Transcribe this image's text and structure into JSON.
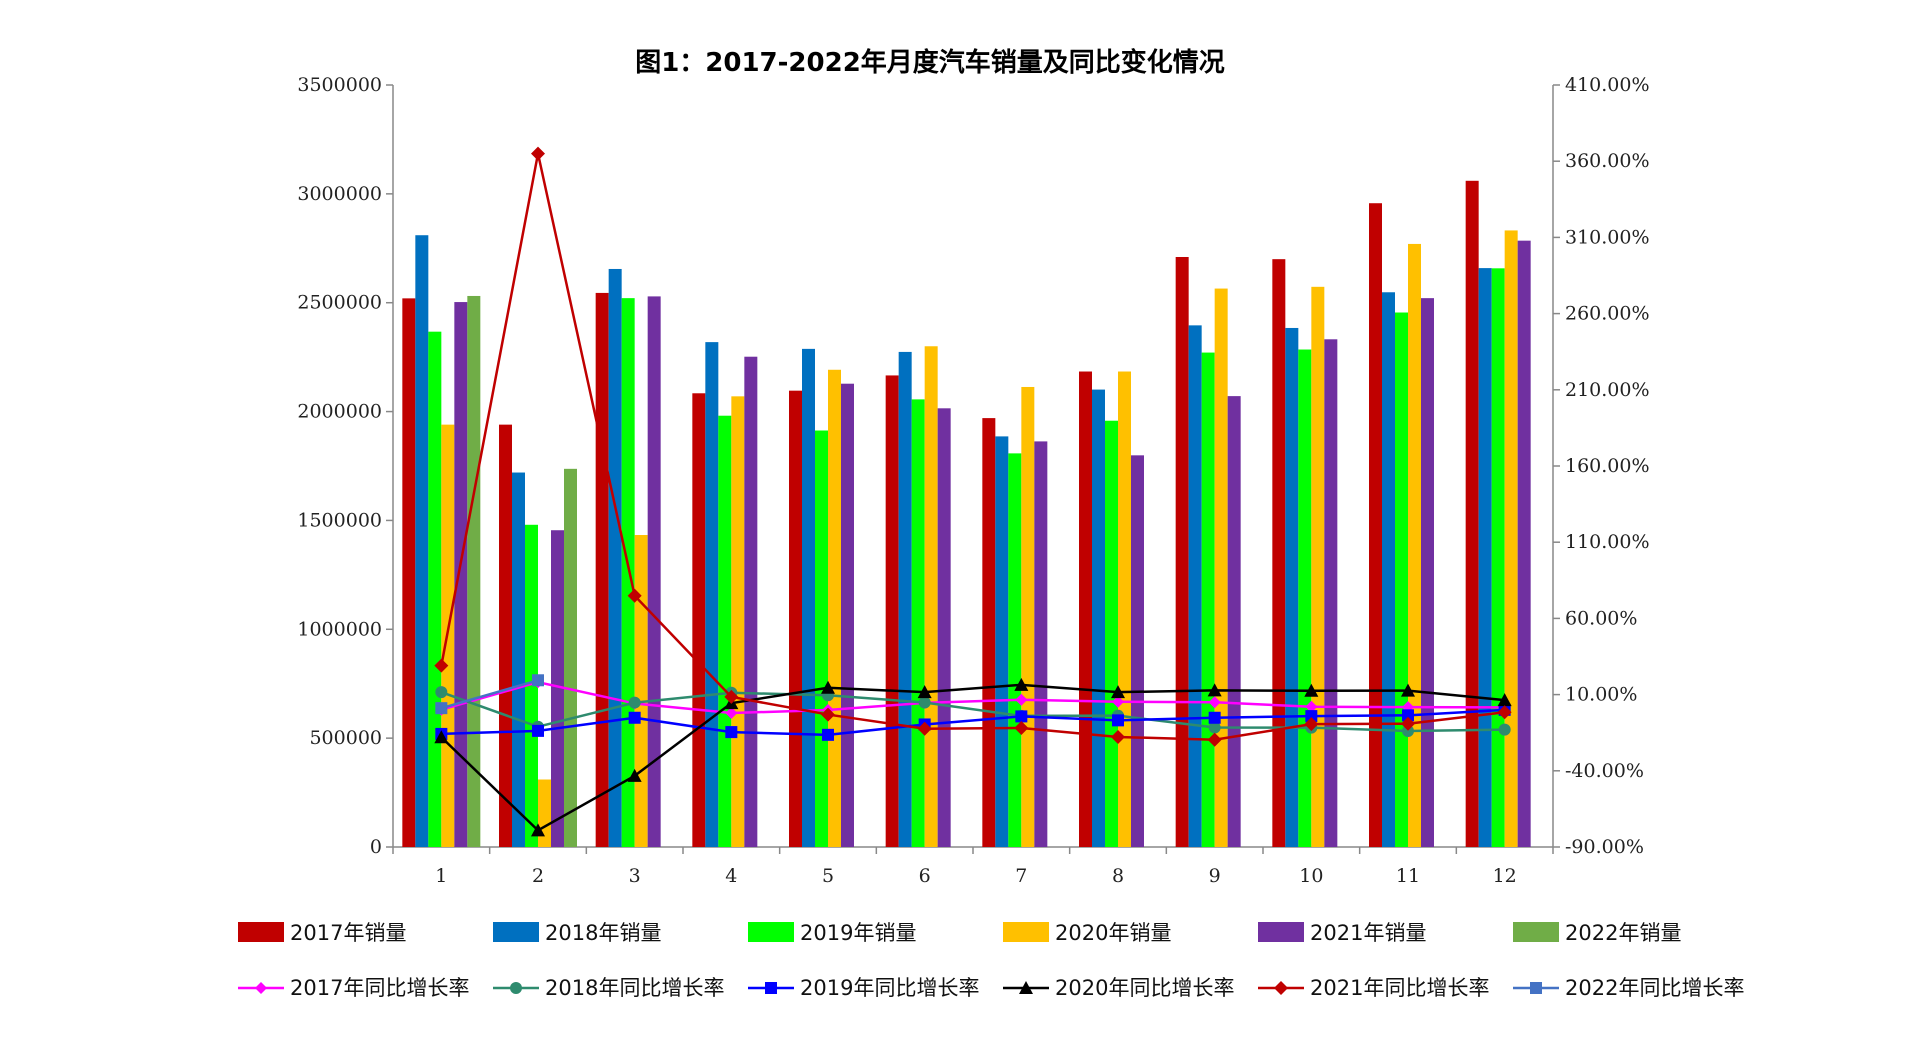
{
  "chart_data": {
    "type": "bar",
    "title": "图1：2017-2022年月度汽车销量及同比变化情况",
    "categories": [
      "1",
      "2",
      "3",
      "4",
      "5",
      "6",
      "7",
      "8",
      "9",
      "10",
      "11",
      "12"
    ],
    "ylim": [
      0,
      3500000
    ],
    "yticks": [
      "0",
      "500000",
      "1000000",
      "1500000",
      "2000000",
      "2500000",
      "3000000",
      "3500000"
    ],
    "y2lim": [
      -90,
      410
    ],
    "y2ticks": [
      "-90.00%",
      "-40.00%",
      "10.00%",
      "60.00%",
      "110.00%",
      "160.00%",
      "210.00%",
      "260.00%",
      "310.00%",
      "360.00%",
      "410.00%"
    ],
    "bar_series": [
      {
        "name": "2017年销量",
        "color": "#c00000",
        "values": [
          2520000,
          1940000,
          2545000,
          2084000,
          2096000,
          2166000,
          1970000,
          2184000,
          2710000,
          2700000,
          2957000,
          3060000
        ]
      },
      {
        "name": "2018年销量",
        "color": "#0070c0",
        "values": [
          2810000,
          1720000,
          2655000,
          2319000,
          2288000,
          2274000,
          1886000,
          2101000,
          2396000,
          2384000,
          2548000,
          2659000
        ]
      },
      {
        "name": "2019年销量",
        "color": "#00ff00",
        "values": [
          2367000,
          1480000,
          2521000,
          1981000,
          1913000,
          2056000,
          1808000,
          1958000,
          2271000,
          2285000,
          2455000,
          2658000
        ]
      },
      {
        "name": "2020年销量",
        "color": "#ffc000",
        "values": [
          1940000,
          310000,
          1433000,
          2070000,
          2192000,
          2300000,
          2113000,
          2184000,
          2565000,
          2573000,
          2770000,
          2832000
        ]
      },
      {
        "name": "2021年销量",
        "color": "#7030a0",
        "values": [
          2503000,
          1455000,
          2529000,
          2252000,
          2128000,
          2015000,
          1863000,
          1799000,
          2071000,
          2332000,
          2521000,
          2785000
        ]
      },
      {
        "name": "2022年销量",
        "color": "#70ad47",
        "values": [
          2531000,
          1737000,
          null,
          null,
          null,
          null,
          null,
          null,
          null,
          null,
          null,
          null
        ]
      }
    ],
    "line_series": [
      {
        "name": "2017年同比增长率",
        "color": "#ff00ff",
        "marker": "diamond-small",
        "values": [
          0.1,
          18.2,
          4.2,
          -2.1,
          -0.1,
          4.6,
          6.6,
          5.3,
          5.0,
          2.0,
          1.8,
          1.6
        ]
      },
      {
        "name": "2018年同比增长率",
        "color": "#2e8b6e",
        "marker": "circle",
        "values": [
          11.6,
          -11.1,
          4.7,
          11.2,
          9.6,
          4.8,
          -4.0,
          -3.8,
          -11.6,
          -11.7,
          -13.9,
          -13.0
        ]
      },
      {
        "name": "2019年同比增长率",
        "color": "#0000ff",
        "marker": "square",
        "values": [
          -15.8,
          -13.8,
          -5.2,
          -14.6,
          -16.4,
          -9.6,
          -4.3,
          -6.9,
          -5.2,
          -4.1,
          -3.6,
          0.0
        ]
      },
      {
        "name": "2020年同比增长率",
        "color": "#000000",
        "marker": "triangle",
        "values": [
          -18.0,
          -79.1,
          -43.3,
          4.4,
          14.5,
          11.6,
          16.4,
          11.6,
          12.8,
          12.5,
          12.6,
          6.4
        ]
      },
      {
        "name": "2021年同比增长率",
        "color": "#c00000",
        "marker": "diamond",
        "values": [
          29.0,
          365.0,
          74.9,
          8.5,
          -3.1,
          -12.4,
          -11.9,
          -17.8,
          -19.6,
          -9.4,
          -9.1,
          -1.6
        ]
      },
      {
        "name": "2022年同比增长率",
        "color": "#4472c4",
        "marker": "square",
        "values": [
          1.1,
          19.4,
          null,
          null,
          null,
          null,
          null,
          null,
          null,
          null,
          null,
          null
        ]
      }
    ]
  }
}
